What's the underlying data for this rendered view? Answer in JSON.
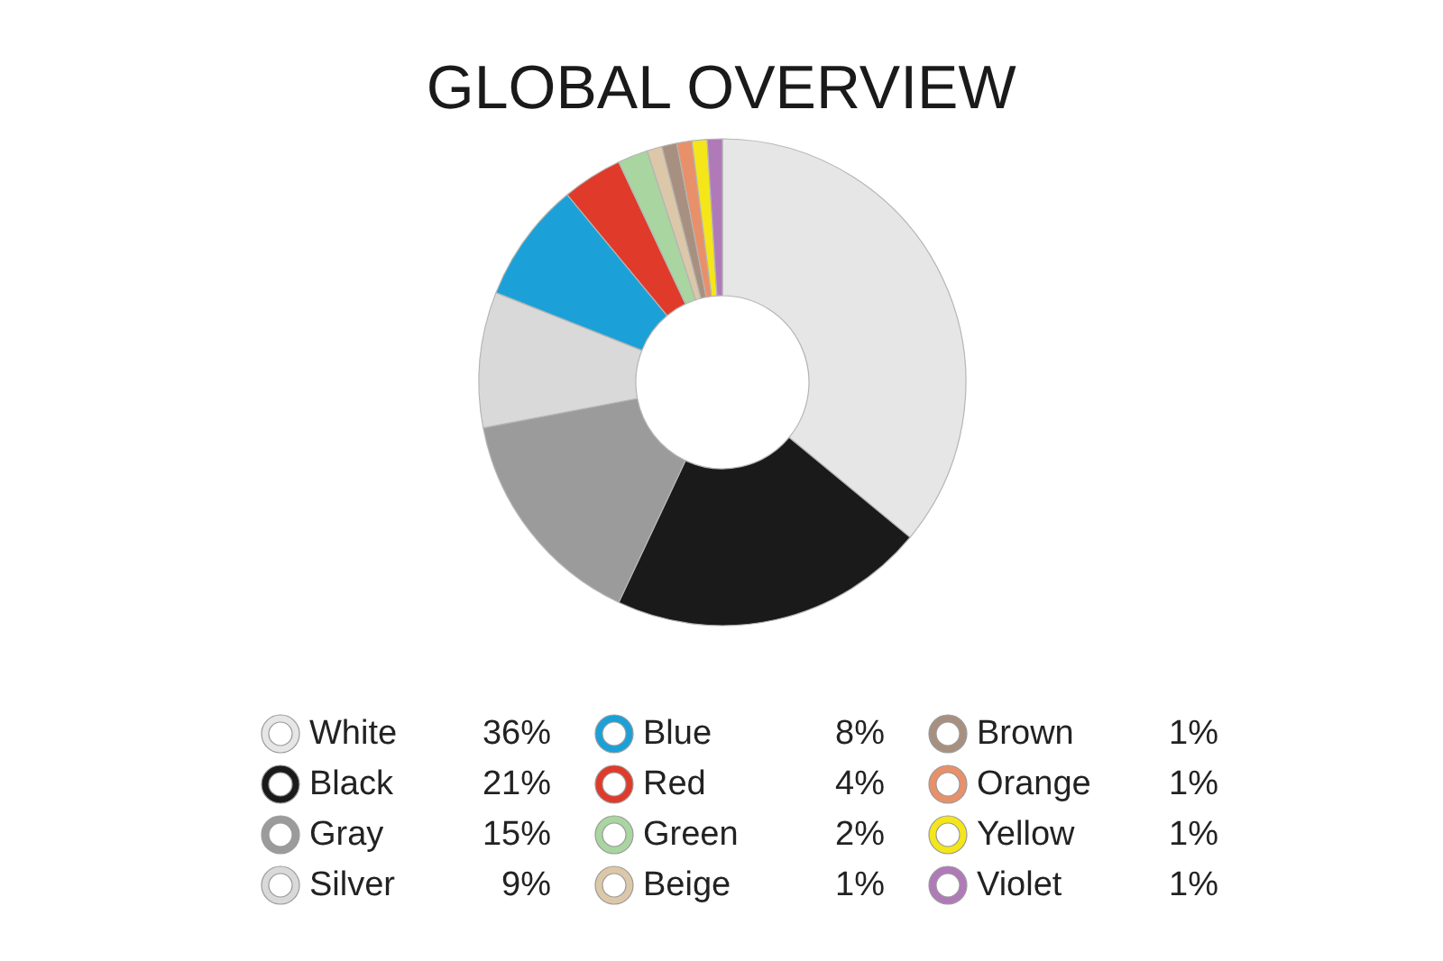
{
  "chart_data": {
    "type": "donut",
    "title": "GLOBAL OVERVIEW",
    "categories": [
      "White",
      "Black",
      "Gray",
      "Silver",
      "Blue",
      "Red",
      "Green",
      "Beige",
      "Brown",
      "Orange",
      "Yellow",
      "Violet"
    ],
    "values": [
      36,
      21,
      15,
      9,
      8,
      4,
      2,
      1,
      1,
      1,
      1,
      1
    ],
    "value_labels": [
      "36%",
      "21%",
      "15%",
      "9%",
      "8%",
      "4%",
      "2%",
      "1%",
      "1%",
      "1%",
      "1%",
      "1%"
    ],
    "colors": [
      "#e6e6e6",
      "#1a1a1a",
      "#9b9b9b",
      "#d9d9d9",
      "#1ba1d8",
      "#e03a2a",
      "#a8d5a0",
      "#dcc8a8",
      "#a89080",
      "#e8906a",
      "#f5e61a",
      "#b07ab8"
    ],
    "legend": "bottom"
  }
}
